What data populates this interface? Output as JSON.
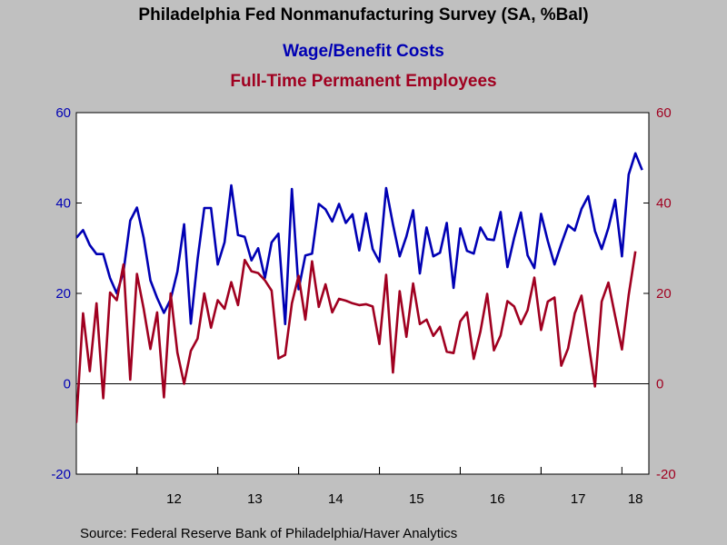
{
  "colors": {
    "background": "#c0c0c0",
    "plot_background": "#ffffff",
    "axis_left": "#0000b4",
    "axis_right": "#a00020",
    "series_wage": "#0000b4",
    "series_employees": "#a00020",
    "title": "#000000"
  },
  "source": "Source:  Federal Reserve Bank of Philadelphia/Haver Analytics",
  "chart_data": {
    "type": "line",
    "title": "Philadelphia Fed Nonmanufacturing Survey (SA, %Bal)",
    "legend_placement": "top-center",
    "grid": false,
    "zero_line": true,
    "ylim": [
      -20,
      60
    ],
    "y_ticks": [
      "-20",
      "0",
      "20",
      "40",
      "60"
    ],
    "y2_ticks": [
      "-20",
      "0",
      "20",
      "40",
      "60"
    ],
    "x_range": [
      "2011-04",
      "2018-05"
    ],
    "x_year_labels": [
      "12",
      "13",
      "14",
      "15",
      "16",
      "17",
      "18"
    ],
    "series": [
      {
        "name": "Wage/Benefit Costs",
        "color": "#0000b4",
        "start": "2011-04",
        "values": [
          32.3,
          34.0,
          30.7,
          28.7,
          28.7,
          23.4,
          20.0,
          24.8,
          36.1,
          39.0,
          32.3,
          22.9,
          19.0,
          15.7,
          18.7,
          24.8,
          35.3,
          13.3,
          27.5,
          38.9,
          38.9,
          26.4,
          31.3,
          43.9,
          32.9,
          32.5,
          27.3,
          30.0,
          23.4,
          31.3,
          33.2,
          13.2,
          43.1,
          20.9,
          28.4,
          28.8,
          39.8,
          38.6,
          35.9,
          39.8,
          35.6,
          37.5,
          29.5,
          37.7,
          29.8,
          27.0,
          43.3,
          35.3,
          28.2,
          32.6,
          38.4,
          24.4,
          34.6,
          28.2,
          29.0,
          35.6,
          21.2,
          34.4,
          29.4,
          28.8,
          34.6,
          32.0,
          31.8,
          38.0,
          25.8,
          32.3,
          37.9,
          28.4,
          25.6,
          37.6,
          31.6,
          26.4,
          30.9,
          35.1,
          33.9,
          38.7,
          41.5,
          33.8,
          29.8,
          34.5,
          40.7,
          28.2,
          46.3,
          51.0,
          47.3
        ]
      },
      {
        "name": "Full-Time Permanent Employees",
        "color": "#a00020",
        "start": "2011-03",
        "values": [
          -2.0,
          -8.5,
          15.6,
          2.8,
          17.8,
          -3.2,
          20.2,
          18.5,
          26.4,
          0.9,
          24.3,
          16.6,
          7.7,
          15.8,
          -3.0,
          20.0,
          6.9,
          0.0,
          7.3,
          10.0,
          20.0,
          12.4,
          18.5,
          16.6,
          22.5,
          17.4,
          27.4,
          24.9,
          24.5,
          22.9,
          20.6,
          5.6,
          6.4,
          17.8,
          23.9,
          14.2,
          27.1,
          17.0,
          22.0,
          15.8,
          18.8,
          18.4,
          17.8,
          17.4,
          17.6,
          17.1,
          8.8,
          24.1,
          2.5,
          20.5,
          10.4,
          22.2,
          13.2,
          14.2,
          10.6,
          12.6,
          7.1,
          6.8,
          13.8,
          15.8,
          5.5,
          11.6,
          19.9,
          7.4,
          10.7,
          18.3,
          17.1,
          13.2,
          16.3,
          23.5,
          11.9,
          18.2,
          19.1,
          4.0,
          7.8,
          15.6,
          19.5,
          9.4,
          -0.6,
          18.2,
          22.4,
          15.0,
          7.6,
          19.6,
          29.3
        ]
      }
    ]
  }
}
